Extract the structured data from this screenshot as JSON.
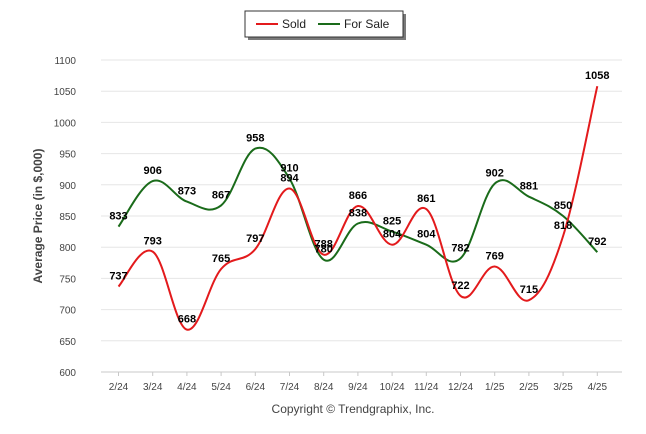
{
  "chart_data": {
    "type": "line",
    "categories": [
      "2/24",
      "3/24",
      "4/24",
      "5/24",
      "6/24",
      "7/24",
      "8/24",
      "9/24",
      "10/24",
      "11/24",
      "12/24",
      "1/25",
      "2/25",
      "3/25",
      "4/25"
    ],
    "series": [
      {
        "name": "Sold",
        "color": "#e31a1c",
        "values": [
          737,
          793,
          668,
          765,
          797,
          894,
          788,
          866,
          804,
          861,
          722,
          769,
          715,
          818,
          1058
        ]
      },
      {
        "name": "For Sale",
        "color": "#1a6b1a",
        "values": [
          833,
          906,
          873,
          867,
          958,
          910,
          780,
          838,
          825,
          804,
          782,
          902,
          881,
          850,
          792
        ]
      }
    ],
    "ylabel": "Average Price (in $,000)",
    "ylim": [
      600,
      1100
    ],
    "yticks": [
      600,
      650,
      700,
      750,
      800,
      850,
      900,
      950,
      1000,
      1050,
      1100
    ],
    "grid": true,
    "legend_position": "top-center"
  },
  "credit": "Copyright © Trendgraphix, Inc."
}
